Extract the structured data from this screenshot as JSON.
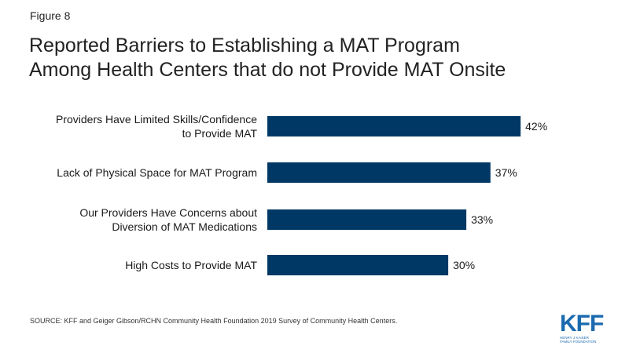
{
  "figure_label": "Figure 8",
  "title_lines": [
    "Reported Barriers to Establishing a MAT Program",
    "Among Health Centers that do not Provide MAT Onsite"
  ],
  "source": "SOURCE: KFF and Geiger Gibson/RCHN Community Health Foundation 2019 Survey of Community Health Centers.",
  "logo": {
    "mark": "KFF",
    "line1": "HENRY J KAISER",
    "line2": "FAMILY FOUNDATION"
  },
  "colors": {
    "bar": "#003865",
    "text": "#1a1a1a",
    "logo": "#1b6ab0"
  },
  "chart_data": {
    "type": "bar",
    "orientation": "horizontal",
    "categories": [
      [
        "Providers Have Limited Skills/Confidence",
        "to Provide MAT"
      ],
      [
        "Lack of Physical Space for MAT Program"
      ],
      [
        "Our Providers Have Concerns about",
        "Diversion of MAT Medications"
      ],
      [
        "High Costs to Provide MAT"
      ]
    ],
    "values": [
      42,
      37,
      33,
      30
    ],
    "value_labels": [
      "42%",
      "37%",
      "33%",
      "30%"
    ],
    "unit": "%",
    "grid": false,
    "legend": "none"
  }
}
